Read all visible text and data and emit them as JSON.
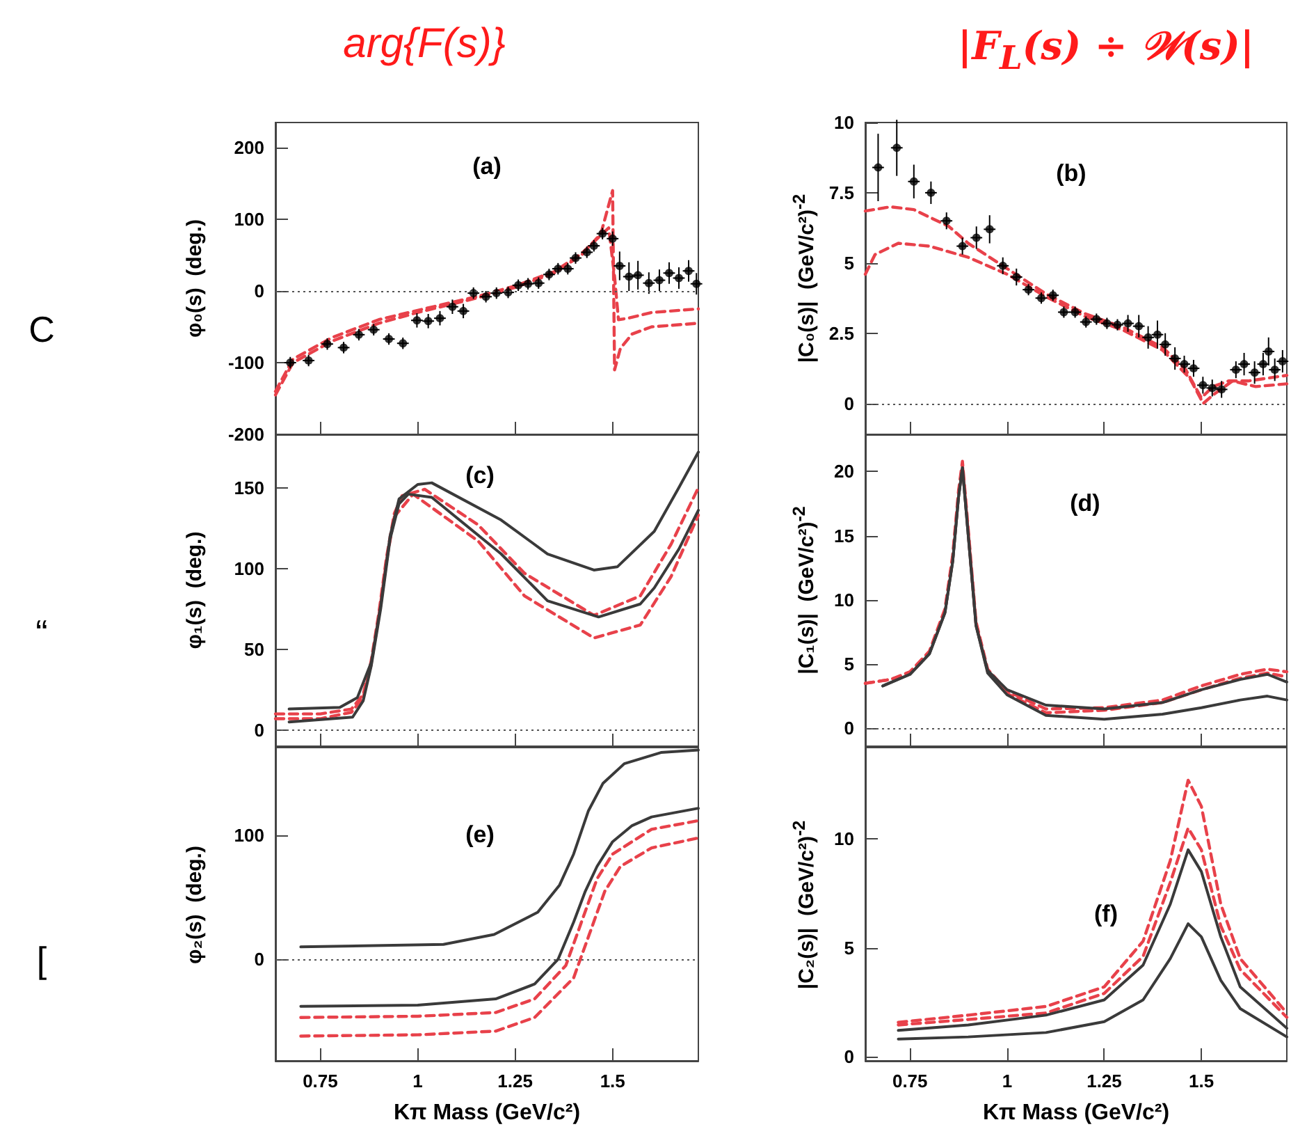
{
  "chart_data": [
    {
      "type": "line",
      "title": "arg{F(s)}",
      "ylabel": "φ₀(s)  (deg.)",
      "annotations": [
        "(a)",
        "C"
      ],
      "xlim": [
        0.635,
        1.72
      ],
      "xticks": [
        0.75,
        1,
        1.25,
        1.5
      ],
      "ylim": [
        -200,
        235
      ],
      "yticks": [
        -200,
        -100,
        0,
        100,
        200
      ],
      "tick_labels": "y",
      "ref_lines": [
        {
          "axis": "y",
          "value": 0,
          "color": "#555555",
          "line_style": "dotted"
        }
      ],
      "series": [
        {
          "type": "line",
          "color": "#e8414a",
          "line_style": "dashed",
          "x": [
            0.635,
            0.68,
            0.78,
            0.9,
            1.0,
            1.15,
            1.25,
            1.35,
            1.42,
            1.47,
            1.5,
            1.505,
            1.52,
            1.55,
            1.6,
            1.72
          ],
          "values": [
            -145,
            -100,
            -70,
            -45,
            -30,
            -10,
            5,
            25,
            50,
            80,
            140,
            -110,
            -80,
            -60,
            -50,
            -45
          ]
        },
        {
          "type": "line",
          "color": "#e8414a",
          "line_style": "dashed",
          "x": [
            0.635,
            0.68,
            0.78,
            0.9,
            1.0,
            1.15,
            1.25,
            1.35,
            1.42,
            1.47,
            1.49,
            1.505,
            1.515,
            1.54,
            1.6,
            1.72
          ],
          "values": [
            -140,
            -95,
            -65,
            -40,
            -27,
            -8,
            7,
            27,
            52,
            78,
            88,
            20,
            -40,
            -38,
            -30,
            -25
          ]
        },
        {
          "type": "scatter",
          "color": "#000000",
          "marker": "circle",
          "x": [
            0.673,
            0.72,
            0.768,
            0.81,
            0.849,
            0.887,
            0.926,
            0.962,
            0.998,
            1.027,
            1.057,
            1.089,
            1.117,
            1.143,
            1.175,
            1.202,
            1.232,
            1.258,
            1.283,
            1.31,
            1.337,
            1.36,
            1.385,
            1.405,
            1.434,
            1.452,
            1.474,
            1.5,
            1.518,
            1.542,
            1.565,
            1.593,
            1.62,
            1.645,
            1.67,
            1.695,
            1.715
          ],
          "values": [
            -100,
            -97,
            -74,
            -79,
            -61,
            -54,
            -67,
            -73,
            -41,
            -42,
            -38,
            -22,
            -28,
            -3,
            -8,
            -3,
            -2,
            8,
            10,
            11,
            23,
            31,
            31,
            46,
            54,
            63,
            80,
            73,
            35,
            20,
            22,
            11,
            15,
            25,
            18,
            28,
            10
          ],
          "errors": [
            8,
            8,
            8,
            8,
            8,
            8,
            8,
            8,
            10,
            10,
            10,
            10,
            10,
            8,
            8,
            8,
            8,
            8,
            8,
            8,
            8,
            8,
            8,
            8,
            8,
            8,
            8,
            10,
            20,
            20,
            20,
            15,
            15,
            15,
            15,
            15,
            15
          ],
          "xerrors": [
            0.015,
            0.015,
            0.015,
            0.015,
            0.015,
            0.015,
            0.015,
            0.015,
            0.015,
            0.015,
            0.015,
            0.015,
            0.015,
            0.015,
            0.015,
            0.015,
            0.015,
            0.015,
            0.015,
            0.015,
            0.015,
            0.015,
            0.015,
            0.015,
            0.015,
            0.015,
            0.015,
            0.015,
            0.015,
            0.015,
            0.015,
            0.015,
            0.015,
            0.015,
            0.015,
            0.015,
            0.015
          ]
        }
      ]
    },
    {
      "type": "line",
      "title": "|F$_{L}$(s) ÷ 𝒲(s)|",
      "ylabel": "|C₀(s)|  (GeV/c²)$^{-2}$",
      "annotations": [
        "(b)"
      ],
      "xlim": [
        0.635,
        1.72
      ],
      "xticks": [
        0.75,
        1,
        1.25,
        1.5
      ],
      "ylim": [
        -1.1,
        10
      ],
      "yticks": [
        0,
        2.5,
        5,
        7.5,
        10
      ],
      "tick_labels": "y",
      "ref_lines": [
        {
          "axis": "y",
          "value": 0,
          "color": "#555555",
          "line_style": "dotted"
        }
      ],
      "series": [
        {
          "type": "line",
          "color": "#e8414a",
          "line_style": "dashed",
          "x": [
            0.635,
            0.7,
            0.76,
            0.85,
            0.9,
            1.0,
            1.1,
            1.2,
            1.3,
            1.4,
            1.46,
            1.5,
            1.53,
            1.57,
            1.62,
            1.72
          ],
          "values": [
            6.85,
            7.0,
            6.9,
            6.3,
            5.7,
            4.8,
            3.9,
            3.2,
            2.7,
            2.0,
            1.2,
            0.2,
            0.6,
            0.8,
            0.8,
            1.0
          ]
        },
        {
          "type": "line",
          "color": "#e8414a",
          "line_style": "dashed",
          "x": [
            0.635,
            0.66,
            0.72,
            0.8,
            0.9,
            1.0,
            1.1,
            1.2,
            1.3,
            1.4,
            1.47,
            1.505,
            1.53,
            1.58,
            1.64,
            1.72
          ],
          "values": [
            4.6,
            5.3,
            5.7,
            5.6,
            5.2,
            4.6,
            3.8,
            3.1,
            2.6,
            1.9,
            0.9,
            0.0,
            0.3,
            0.8,
            0.6,
            0.7
          ]
        },
        {
          "type": "scatter",
          "color": "#000000",
          "marker": "circle",
          "x": [
            0.668,
            0.716,
            0.76,
            0.804,
            0.844,
            0.885,
            0.921,
            0.955,
            0.989,
            1.024,
            1.055,
            1.088,
            1.118,
            1.146,
            1.175,
            1.203,
            1.23,
            1.257,
            1.284,
            1.311,
            1.339,
            1.363,
            1.387,
            1.407,
            1.432,
            1.456,
            1.48,
            1.504,
            1.528,
            1.552,
            1.589,
            1.61,
            1.637,
            1.659,
            1.673,
            1.689,
            1.709
          ],
          "values": [
            8.4,
            9.1,
            7.9,
            7.5,
            6.5,
            5.6,
            5.9,
            6.2,
            4.9,
            4.5,
            4.05,
            3.75,
            3.85,
            3.25,
            3.25,
            2.9,
            3.0,
            2.85,
            2.8,
            2.85,
            2.75,
            2.35,
            2.45,
            2.1,
            1.6,
            1.4,
            1.25,
            0.65,
            0.55,
            0.5,
            1.2,
            1.4,
            1.1,
            1.4,
            1.85,
            1.2,
            1.5
          ],
          "errors": [
            1.2,
            1.0,
            0.6,
            0.4,
            0.3,
            0.3,
            0.4,
            0.5,
            0.3,
            0.3,
            0.2,
            0.2,
            0.2,
            0.2,
            0.2,
            0.2,
            0.2,
            0.2,
            0.2,
            0.3,
            0.4,
            0.4,
            0.5,
            0.4,
            0.4,
            0.3,
            0.3,
            0.3,
            0.3,
            0.3,
            0.3,
            0.4,
            0.4,
            0.4,
            0.5,
            0.4,
            0.4
          ],
          "xerrors": [
            0.015,
            0.015,
            0.015,
            0.015,
            0.015,
            0.015,
            0.015,
            0.015,
            0.015,
            0.015,
            0.015,
            0.015,
            0.015,
            0.015,
            0.015,
            0.015,
            0.015,
            0.015,
            0.015,
            0.015,
            0.015,
            0.015,
            0.015,
            0.015,
            0.015,
            0.015,
            0.015,
            0.015,
            0.015,
            0.015,
            0.015,
            0.015,
            0.015,
            0.015,
            0.015,
            0.015,
            0.015
          ]
        }
      ]
    },
    {
      "type": "line",
      "ylabel": "φ₁(s)  (deg.)",
      "annotations": [
        "(c)",
        "“"
      ],
      "xlim": [
        0.635,
        1.72
      ],
      "xticks": [
        0.75,
        1,
        1.25,
        1.5
      ],
      "ylim": [
        -10,
        183
      ],
      "yticks": [
        0,
        50,
        100,
        150
      ],
      "tick_labels": "y",
      "ref_lines": [
        {
          "axis": "y",
          "value": 0,
          "color": "#555555",
          "line_style": "dotted"
        }
      ],
      "series": [
        {
          "type": "line",
          "color": "#e8414a",
          "line_style": "dashed",
          "x": [
            0.635,
            0.75,
            0.83,
            0.86,
            0.88,
            0.9,
            0.92,
            0.94,
            0.96,
            1.018,
            1.155,
            1.274,
            1.452,
            1.571,
            1.65,
            1.72
          ],
          "values": [
            10,
            10,
            13,
            22,
            42,
            72,
            107,
            134,
            145,
            149,
            127,
            97,
            71,
            83,
            115,
            150
          ]
        },
        {
          "type": "line",
          "color": "#e8414a",
          "line_style": "dashed",
          "x": [
            0.635,
            0.75,
            0.83,
            0.86,
            0.88,
            0.9,
            0.92,
            0.94,
            0.988,
            1.155,
            1.274,
            1.452,
            1.571,
            1.65,
            1.72
          ],
          "values": [
            7,
            7,
            11,
            20,
            40,
            70,
            105,
            132,
            146,
            117,
            83,
            57,
            65,
            95,
            133
          ]
        },
        {
          "type": "line",
          "color": "#3a3a3a",
          "x": [
            0.67,
            0.8,
            0.845,
            0.881,
            0.905,
            0.929,
            0.952,
            1.0,
            1.036,
            1.214,
            1.333,
            1.452,
            1.512,
            1.607,
            1.67,
            1.72
          ],
          "values": [
            13,
            14,
            20,
            42,
            77,
            120,
            143,
            152,
            153,
            130,
            109,
            99,
            101,
            123,
            150,
            172
          ]
        },
        {
          "type": "line",
          "color": "#3a3a3a",
          "x": [
            0.67,
            0.833,
            0.86,
            0.881,
            0.905,
            0.929,
            0.952,
            0.976,
            1.036,
            1.214,
            1.333,
            1.464,
            1.571,
            1.607,
            1.67,
            1.72
          ],
          "values": [
            5,
            8,
            18,
            40,
            75,
            118,
            140,
            146,
            144,
            109,
            80,
            70,
            78,
            88,
            112,
            136
          ]
        }
      ]
    },
    {
      "type": "line",
      "ylabel": "|C₁(s)|  (GeV/c²)$^{-2}$",
      "annotations": [
        "(d)"
      ],
      "xlim": [
        0.635,
        1.72
      ],
      "xticks": [
        0.75,
        1,
        1.25,
        1.5
      ],
      "ylim": [
        -1.4,
        22.9
      ],
      "yticks": [
        0,
        5,
        10,
        15,
        20
      ],
      "tick_labels": "y",
      "ref_lines": [
        {
          "axis": "y",
          "value": 0,
          "color": "#555555",
          "line_style": "dotted"
        }
      ],
      "series": [
        {
          "type": "line",
          "color": "#e8414a",
          "line_style": "dashed",
          "x": [
            0.635,
            0.7,
            0.75,
            0.8,
            0.84,
            0.86,
            0.875,
            0.885,
            0.9,
            0.92,
            0.95,
            1.0,
            1.1,
            1.25,
            1.4,
            1.5,
            1.6,
            1.67,
            1.72
          ],
          "values": [
            3.5,
            3.8,
            4.4,
            6.0,
            9.3,
            13.5,
            18.5,
            20.8,
            15.5,
            8.3,
            4.6,
            2.9,
            1.5,
            1.6,
            2.2,
            3.3,
            4.2,
            4.6,
            4.4
          ]
        },
        {
          "type": "line",
          "color": "#e8414a",
          "line_style": "dashed",
          "x": [
            0.635,
            0.7,
            0.75,
            0.8,
            0.84,
            0.86,
            0.875,
            0.885,
            0.9,
            0.92,
            0.95,
            1.0,
            1.1,
            1.25,
            1.4,
            1.5,
            1.6,
            1.67,
            1.72
          ],
          "values": [
            3.5,
            3.8,
            4.3,
            5.9,
            9.1,
            13.2,
            18.2,
            20.5,
            15.2,
            8.1,
            4.4,
            2.7,
            1.2,
            1.4,
            2.0,
            3.0,
            3.9,
            4.3,
            4.0
          ]
        },
        {
          "type": "line",
          "color": "#3a3a3a",
          "x": [
            0.68,
            0.75,
            0.8,
            0.84,
            0.86,
            0.875,
            0.885,
            0.9,
            0.92,
            0.95,
            1.0,
            1.1,
            1.25,
            1.4,
            1.5,
            1.6,
            1.67,
            1.72
          ],
          "values": [
            3.3,
            4.2,
            5.8,
            9.0,
            13.0,
            18.0,
            20.3,
            15.0,
            8.0,
            4.5,
            3.0,
            1.8,
            1.5,
            2.0,
            3.0,
            3.8,
            4.2,
            3.6
          ]
        },
        {
          "type": "line",
          "color": "#3a3a3a",
          "x": [
            0.68,
            0.75,
            0.8,
            0.84,
            0.86,
            0.875,
            0.885,
            0.9,
            0.92,
            0.95,
            1.0,
            1.1,
            1.25,
            1.4,
            1.5,
            1.6,
            1.67,
            1.72
          ],
          "values": [
            3.3,
            4.2,
            5.8,
            9.0,
            13.0,
            18.0,
            20.3,
            15.0,
            8.0,
            4.3,
            2.6,
            1.0,
            0.7,
            1.1,
            1.6,
            2.2,
            2.5,
            2.2
          ]
        }
      ]
    },
    {
      "type": "line",
      "ylabel": "φ₂(s)  (deg.)",
      "xlabel": "Kπ Mass (GeV/c²)",
      "annotations": [
        "(e)",
        "["
      ],
      "xlim": [
        0.635,
        1.72
      ],
      "xticks": [
        0.75,
        1,
        1.25,
        1.5
      ],
      "ylim": [
        -82,
        171
      ],
      "yticks": [
        0,
        100
      ],
      "ref_lines": [
        {
          "axis": "y",
          "value": 0,
          "color": "#555555",
          "line_style": "dotted"
        }
      ],
      "series": [
        {
          "type": "line",
          "color": "#3a3a3a",
          "x": [
            0.7,
            1.066,
            1.196,
            1.308,
            1.364,
            1.4,
            1.438,
            1.475,
            1.53,
            1.624,
            1.72
          ],
          "values": [
            10,
            12,
            20,
            38,
            60,
            85,
            120,
            142,
            158,
            167,
            169
          ]
        },
        {
          "type": "line",
          "color": "#3a3a3a",
          "x": [
            0.7,
            1.0,
            1.2,
            1.3,
            1.36,
            1.4,
            1.43,
            1.46,
            1.5,
            1.55,
            1.6,
            1.72
          ],
          "values": [
            -38,
            -37,
            -32,
            -20,
            0,
            30,
            55,
            75,
            95,
            108,
            115,
            122
          ]
        },
        {
          "type": "line",
          "color": "#e8414a",
          "line_style": "dashed",
          "x": [
            0.7,
            1.0,
            1.2,
            1.3,
            1.38,
            1.42,
            1.46,
            1.5,
            1.6,
            1.72
          ],
          "values": [
            -47,
            -46,
            -43,
            -32,
            -5,
            30,
            65,
            85,
            105,
            112
          ]
        },
        {
          "type": "line",
          "color": "#e8414a",
          "line_style": "dashed",
          "x": [
            0.7,
            1.0,
            1.2,
            1.3,
            1.4,
            1.44,
            1.48,
            1.52,
            1.6,
            1.72
          ],
          "values": [
            -62,
            -61,
            -58,
            -47,
            -15,
            20,
            55,
            75,
            90,
            98
          ]
        }
      ]
    },
    {
      "type": "line",
      "ylabel": "|C₂(s)|  (GeV/c²)$^{-2}$",
      "xlabel": "Kπ Mass (GeV/c²)",
      "annotations": [
        "(f)"
      ],
      "xlim": [
        0.635,
        1.72
      ],
      "xticks": [
        0.75,
        1,
        1.25,
        1.5
      ],
      "ylim": [
        -0.2,
        14.2
      ],
      "yticks": [
        0,
        5,
        10
      ],
      "series": [
        {
          "type": "line",
          "color": "#e8414a",
          "line_style": "dashed",
          "x": [
            0.72,
            0.9,
            1.1,
            1.25,
            1.35,
            1.42,
            1.466,
            1.5,
            1.55,
            1.6,
            1.72
          ],
          "values": [
            1.57,
            1.9,
            2.3,
            3.2,
            5.3,
            9.0,
            12.7,
            11.5,
            7.0,
            4.5,
            2.0
          ]
        },
        {
          "type": "line",
          "color": "#e8414a",
          "line_style": "dashed",
          "x": [
            0.72,
            0.9,
            1.1,
            1.25,
            1.35,
            1.42,
            1.466,
            1.5,
            1.55,
            1.6,
            1.72
          ],
          "values": [
            1.45,
            1.7,
            2.0,
            2.9,
            4.6,
            8.0,
            10.5,
            9.5,
            6.0,
            4.0,
            1.8
          ]
        },
        {
          "type": "line",
          "color": "#3a3a3a",
          "x": [
            0.72,
            0.9,
            1.1,
            1.25,
            1.35,
            1.42,
            1.466,
            1.5,
            1.55,
            1.6,
            1.72
          ],
          "values": [
            1.2,
            1.45,
            1.9,
            2.6,
            4.2,
            7.0,
            9.5,
            8.5,
            5.5,
            3.2,
            1.3
          ]
        },
        {
          "type": "line",
          "color": "#3a3a3a",
          "x": [
            0.72,
            0.9,
            1.1,
            1.25,
            1.35,
            1.42,
            1.466,
            1.5,
            1.55,
            1.6,
            1.72
          ],
          "values": [
            0.8,
            0.9,
            1.1,
            1.6,
            2.6,
            4.5,
            6.1,
            5.5,
            3.5,
            2.2,
            0.9
          ]
        }
      ]
    }
  ]
}
